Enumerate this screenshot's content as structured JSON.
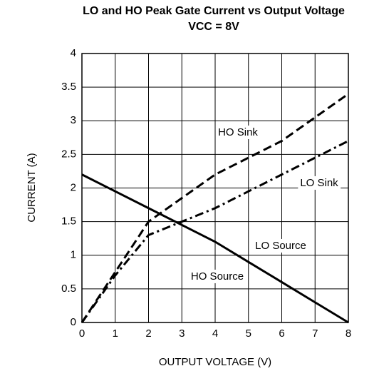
{
  "chart_data": {
    "type": "line",
    "title": "LO and HO Peak Gate Current vs Output Voltage",
    "subtitle": "VCC = 8V",
    "x_label": "OUTPUT VOLTAGE (V)",
    "y_label": "CURRENT (A)",
    "x": [
      0,
      1,
      2,
      3,
      4,
      5,
      6,
      7,
      8
    ],
    "series": [
      {
        "color": "#000000",
        "dash": "solid",
        "values": [
          2.2,
          1.95,
          1.7,
          1.45,
          1.2,
          0.9,
          0.6,
          0.3,
          0
        ]
      },
      {
        "color": "#000000",
        "dash": "dashed",
        "values": [
          0,
          0.75,
          1.5,
          1.85,
          2.2,
          2.45,
          2.7,
          3.05,
          3.4
        ]
      },
      {
        "color": "#000000",
        "dash": "dashdot",
        "values": [
          0,
          0.7,
          1.3,
          1.5,
          1.7,
          1.95,
          2.2,
          2.45,
          2.7
        ]
      }
    ],
    "annotations": [
      "HO Sink",
      "LO Sink",
      "LO Source",
      "HO Source"
    ],
    "xlim": [
      0,
      8
    ],
    "xticks": [
      0,
      1,
      2,
      3,
      4,
      5,
      6,
      7,
      8
    ],
    "ylim": [
      0,
      4
    ],
    "yticks": [
      0,
      0.5,
      1,
      1.5,
      2,
      2.5,
      3,
      3.5,
      4
    ],
    "grid": true
  }
}
